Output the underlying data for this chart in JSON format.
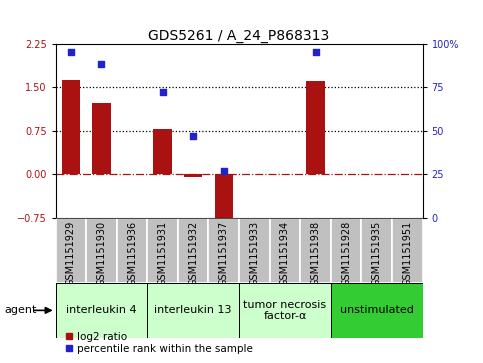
{
  "title": "GDS5261 / A_24_P868313",
  "samples": [
    "GSM1151929",
    "GSM1151930",
    "GSM1151936",
    "GSM1151931",
    "GSM1151932",
    "GSM1151937",
    "GSM1151933",
    "GSM1151934",
    "GSM1151938",
    "GSM1151928",
    "GSM1151935",
    "GSM1151951"
  ],
  "log2_ratio": [
    1.62,
    1.22,
    0.0,
    0.78,
    -0.04,
    -0.92,
    0.0,
    0.0,
    1.6,
    0.0,
    0.0,
    0.0
  ],
  "percentile": [
    95,
    88,
    null,
    72,
    47,
    27,
    null,
    null,
    95,
    null,
    null,
    null
  ],
  "ylim_left": [
    -0.75,
    2.25
  ],
  "ylim_right": [
    0,
    100
  ],
  "yticks_left": [
    -0.75,
    0.0,
    0.75,
    1.5,
    2.25
  ],
  "yticks_right": [
    0,
    25,
    50,
    75,
    100
  ],
  "hlines_dotted": [
    1.5,
    0.75
  ],
  "hline_dashed": 0.0,
  "agents": [
    {
      "label": "interleukin 4",
      "indices": [
        0,
        1,
        2
      ],
      "color": "#ccffcc"
    },
    {
      "label": "interleukin 13",
      "indices": [
        3,
        4,
        5
      ],
      "color": "#ccffcc"
    },
    {
      "label": "tumor necrosis\nfactor-α",
      "indices": [
        6,
        7,
        8
      ],
      "color": "#ccffcc"
    },
    {
      "label": "unstimulated",
      "indices": [
        9,
        10,
        11
      ],
      "color": "#33cc33"
    }
  ],
  "bar_color": "#aa1111",
  "scatter_color": "#2222cc",
  "sample_box_color": "#c0c0c0",
  "title_fontsize": 10,
  "tick_fontsize": 7,
  "label_fontsize": 7,
  "legend_fontsize": 7.5,
  "agent_fontsize": 8
}
